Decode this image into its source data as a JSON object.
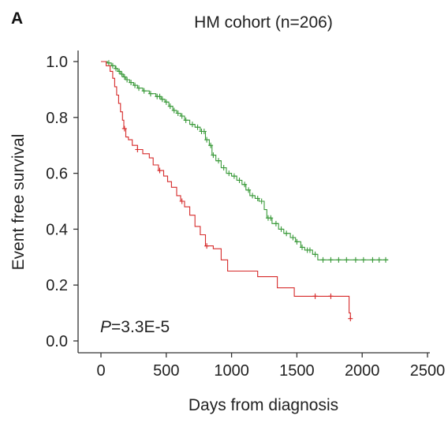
{
  "panel_label": "A",
  "chart_data": {
    "type": "line",
    "title": "HM cohort (n=206)",
    "xlabel": "Days from diagnosis",
    "ylabel": "Event free survival",
    "xlim": [
      0,
      2500
    ],
    "ylim": [
      0.0,
      1.0
    ],
    "xticks": [
      0,
      500,
      1000,
      1500,
      2000,
      2500
    ],
    "yticks": [
      "0.0",
      "0.2",
      "0.4",
      "0.6",
      "0.8",
      "1.0"
    ],
    "annotation": {
      "p_symbol": "P",
      "p_value": "=3.3E-5"
    },
    "series": [
      {
        "color": "#3a9a3a",
        "step": [
          [
            0,
            1.0
          ],
          [
            50,
            0.995
          ],
          [
            80,
            0.985
          ],
          [
            110,
            0.975
          ],
          [
            130,
            0.965
          ],
          [
            150,
            0.955
          ],
          [
            170,
            0.945
          ],
          [
            190,
            0.935
          ],
          [
            220,
            0.925
          ],
          [
            250,
            0.915
          ],
          [
            280,
            0.905
          ],
          [
            320,
            0.895
          ],
          [
            370,
            0.885
          ],
          [
            420,
            0.875
          ],
          [
            460,
            0.865
          ],
          [
            490,
            0.855
          ],
          [
            520,
            0.84
          ],
          [
            550,
            0.825
          ],
          [
            580,
            0.815
          ],
          [
            610,
            0.805
          ],
          [
            640,
            0.79
          ],
          [
            680,
            0.775
          ],
          [
            720,
            0.765
          ],
          [
            760,
            0.75
          ],
          [
            800,
            0.72
          ],
          [
            830,
            0.7
          ],
          [
            850,
            0.665
          ],
          [
            880,
            0.645
          ],
          [
            920,
            0.62
          ],
          [
            960,
            0.6
          ],
          [
            1000,
            0.59
          ],
          [
            1040,
            0.575
          ],
          [
            1080,
            0.56
          ],
          [
            1110,
            0.54
          ],
          [
            1140,
            0.52
          ],
          [
            1180,
            0.51
          ],
          [
            1210,
            0.5
          ],
          [
            1250,
            0.47
          ],
          [
            1270,
            0.44
          ],
          [
            1310,
            0.42
          ],
          [
            1360,
            0.4
          ],
          [
            1400,
            0.385
          ],
          [
            1450,
            0.37
          ],
          [
            1490,
            0.355
          ],
          [
            1530,
            0.335
          ],
          [
            1560,
            0.325
          ],
          [
            1620,
            0.31
          ],
          [
            1660,
            0.29
          ],
          [
            2200,
            0.29
          ]
        ],
        "censor": [
          60,
          90,
          115,
          140,
          160,
          180,
          200,
          230,
          260,
          290,
          330,
          380,
          430,
          450,
          470,
          500,
          530,
          560,
          590,
          620,
          650,
          700,
          740,
          770,
          790,
          810,
          840,
          860,
          900,
          940,
          980,
          1020,
          1060,
          1100,
          1130,
          1160,
          1200,
          1230,
          1280,
          1300,
          1340,
          1380,
          1420,
          1470,
          1500,
          1540,
          1580,
          1600,
          1640,
          1700,
          1760,
          1820,
          1880,
          1950,
          2010,
          2080,
          2130,
          2180
        ]
      },
      {
        "color": "#d62a2a",
        "step": [
          [
            0,
            1.0
          ],
          [
            40,
            0.985
          ],
          [
            70,
            0.965
          ],
          [
            90,
            0.94
          ],
          [
            105,
            0.91
          ],
          [
            120,
            0.88
          ],
          [
            135,
            0.85
          ],
          [
            150,
            0.82
          ],
          [
            165,
            0.79
          ],
          [
            175,
            0.76
          ],
          [
            190,
            0.73
          ],
          [
            210,
            0.72
          ],
          [
            240,
            0.7
          ],
          [
            280,
            0.685
          ],
          [
            320,
            0.67
          ],
          [
            370,
            0.655
          ],
          [
            400,
            0.63
          ],
          [
            440,
            0.61
          ],
          [
            480,
            0.59
          ],
          [
            510,
            0.57
          ],
          [
            540,
            0.55
          ],
          [
            580,
            0.52
          ],
          [
            610,
            0.5
          ],
          [
            640,
            0.48
          ],
          [
            680,
            0.45
          ],
          [
            720,
            0.41
          ],
          [
            760,
            0.38
          ],
          [
            800,
            0.34
          ],
          [
            860,
            0.33
          ],
          [
            920,
            0.29
          ],
          [
            970,
            0.25
          ],
          [
            1200,
            0.23
          ],
          [
            1350,
            0.19
          ],
          [
            1480,
            0.16
          ],
          [
            1760,
            0.16
          ],
          [
            1900,
            0.1
          ],
          [
            1910,
            0.08
          ]
        ],
        "censor": [
          180,
          280,
          450,
          620,
          810,
          1640,
          1760,
          1910
        ]
      }
    ]
  }
}
